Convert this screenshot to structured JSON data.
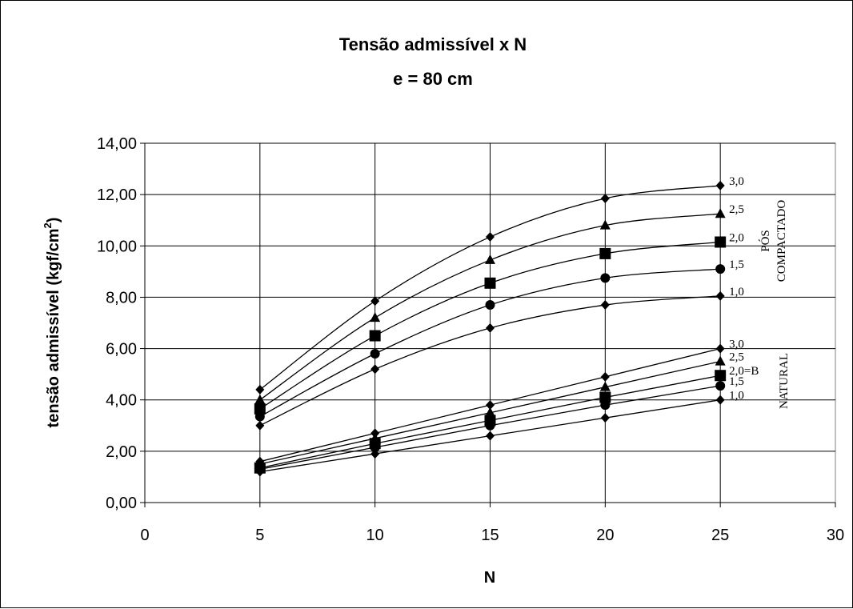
{
  "chart_data": {
    "type": "line",
    "title": "Tensão admissível x N",
    "subtitle": "e = 80 cm",
    "xlabel": "N",
    "ylabel": "tensão admissível (kgf/cm",
    "ylabel_superscript": "2",
    "ylabel_close": ")",
    "xlim": [
      0,
      30
    ],
    "ylim": [
      0,
      14
    ],
    "x_ticks": [
      0,
      5,
      10,
      15,
      20,
      25,
      30
    ],
    "x_tick_labels": [
      "0",
      "5",
      "10",
      "15",
      "20",
      "25",
      "30"
    ],
    "y_ticks": [
      0,
      2,
      4,
      6,
      8,
      10,
      12,
      14
    ],
    "y_tick_labels": [
      "0,00",
      "2,00",
      "4,00",
      "6,00",
      "8,00",
      "10,00",
      "12,00",
      "14,00"
    ],
    "grid": "horizontal",
    "x": [
      5,
      10,
      15,
      20,
      25
    ],
    "groups": [
      {
        "label_lines": [
          "PÓS",
          "COMPACTADO"
        ]
      },
      {
        "label_lines": [
          "NATURAL"
        ]
      }
    ],
    "series": [
      {
        "name": "3,0",
        "group": 0,
        "marker": "diamond",
        "values": [
          4.4,
          7.85,
          10.35,
          11.85,
          12.35
        ]
      },
      {
        "name": "2,5",
        "group": 0,
        "marker": "triangle",
        "values": [
          4.0,
          7.2,
          9.45,
          10.8,
          11.25
        ]
      },
      {
        "name": "2,0",
        "group": 0,
        "marker": "square",
        "values": [
          3.65,
          6.5,
          8.55,
          9.7,
          10.15
        ]
      },
      {
        "name": "1,5",
        "group": 0,
        "marker": "circle",
        "values": [
          3.35,
          5.8,
          7.7,
          8.75,
          9.1
        ]
      },
      {
        "name": "1,0",
        "group": 0,
        "marker": "diamond",
        "values": [
          3.0,
          5.2,
          6.8,
          7.7,
          8.05
        ]
      },
      {
        "name": "3,0",
        "group": 1,
        "marker": "diamond",
        "values": [
          1.6,
          2.7,
          3.8,
          4.9,
          6.0
        ]
      },
      {
        "name": "2,5",
        "group": 1,
        "marker": "triangle",
        "values": [
          1.5,
          2.5,
          3.5,
          4.5,
          5.5
        ]
      },
      {
        "name": "2,0=B",
        "group": 1,
        "marker": "square",
        "values": [
          1.35,
          2.3,
          3.2,
          4.1,
          4.95
        ]
      },
      {
        "name": "1,5",
        "group": 1,
        "marker": "circle",
        "values": [
          1.3,
          2.15,
          3.0,
          3.8,
          4.55
        ]
      },
      {
        "name": "1,0",
        "group": 1,
        "marker": "diamond",
        "values": [
          1.2,
          1.9,
          2.6,
          3.3,
          4.0
        ]
      }
    ]
  }
}
